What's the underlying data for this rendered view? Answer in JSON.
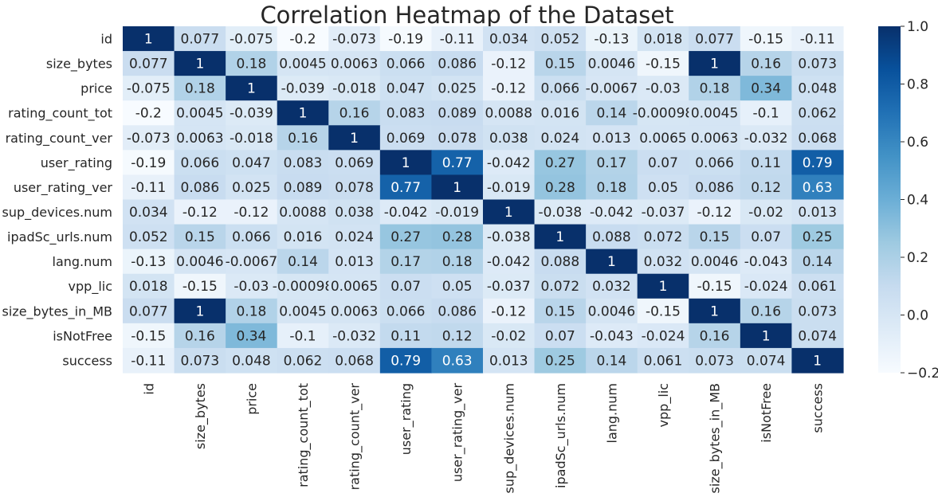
{
  "chart_data": {
    "type": "heatmap",
    "title": "Correlation Heatmap of the Dataset",
    "labels": [
      "id",
      "size_bytes",
      "price",
      "rating_count_tot",
      "rating_count_ver",
      "user_rating",
      "user_rating_ver",
      "sup_devices.num",
      "ipadSc_urls.num",
      "lang.num",
      "vpp_lic",
      "size_bytes_in_MB",
      "isNotFree",
      "success"
    ],
    "matrix": [
      [
        "1",
        "0.077",
        "-0.075",
        "-0.2",
        "-0.073",
        "-0.19",
        "-0.11",
        "0.034",
        "0.052",
        "-0.13",
        "0.018",
        "0.077",
        "-0.15",
        "-0.11"
      ],
      [
        "0.077",
        "1",
        "0.18",
        "0.0045",
        "0.0063",
        "0.066",
        "0.086",
        "-0.12",
        "0.15",
        "0.0046",
        "-0.15",
        "1",
        "0.16",
        "0.073"
      ],
      [
        "-0.075",
        "0.18",
        "1",
        "-0.039",
        "-0.018",
        "0.047",
        "0.025",
        "-0.12",
        "0.066",
        "-0.0067",
        "-0.03",
        "0.18",
        "0.34",
        "0.048"
      ],
      [
        "-0.2",
        "0.0045",
        "-0.039",
        "1",
        "0.16",
        "0.083",
        "0.089",
        "0.0088",
        "0.016",
        "0.14",
        "-0.00098",
        "0.0045",
        "-0.1",
        "0.062"
      ],
      [
        "-0.073",
        "0.0063",
        "-0.018",
        "0.16",
        "1",
        "0.069",
        "0.078",
        "0.038",
        "0.024",
        "0.013",
        "0.0065",
        "0.0063",
        "-0.032",
        "0.068"
      ],
      [
        "-0.19",
        "0.066",
        "0.047",
        "0.083",
        "0.069",
        "1",
        "0.77",
        "-0.042",
        "0.27",
        "0.17",
        "0.07",
        "0.066",
        "0.11",
        "0.79"
      ],
      [
        "-0.11",
        "0.086",
        "0.025",
        "0.089",
        "0.078",
        "0.77",
        "1",
        "-0.019",
        "0.28",
        "0.18",
        "0.05",
        "0.086",
        "0.12",
        "0.63"
      ],
      [
        "0.034",
        "-0.12",
        "-0.12",
        "0.0088",
        "0.038",
        "-0.042",
        "-0.019",
        "1",
        "-0.038",
        "-0.042",
        "-0.037",
        "-0.12",
        "-0.02",
        "0.013"
      ],
      [
        "0.052",
        "0.15",
        "0.066",
        "0.016",
        "0.024",
        "0.27",
        "0.28",
        "-0.038",
        "1",
        "0.088",
        "0.072",
        "0.15",
        "0.07",
        "0.25"
      ],
      [
        "-0.13",
        "0.0046",
        "-0.0067",
        "0.14",
        "0.013",
        "0.17",
        "0.18",
        "-0.042",
        "0.088",
        "1",
        "0.032",
        "0.0046",
        "-0.043",
        "0.14"
      ],
      [
        "0.018",
        "-0.15",
        "-0.03",
        "-0.00098",
        "0.0065",
        "0.07",
        "0.05",
        "-0.037",
        "0.072",
        "0.032",
        "1",
        "-0.15",
        "-0.024",
        "0.061"
      ],
      [
        "0.077",
        "1",
        "0.18",
        "0.0045",
        "0.0063",
        "0.066",
        "0.086",
        "-0.12",
        "0.15",
        "0.0046",
        "-0.15",
        "1",
        "0.16",
        "0.073"
      ],
      [
        "-0.15",
        "0.16",
        "0.34",
        "-0.1",
        "-0.032",
        "0.11",
        "0.12",
        "-0.02",
        "0.07",
        "-0.043",
        "-0.024",
        "0.16",
        "1",
        "0.074"
      ],
      [
        "-0.11",
        "0.073",
        "0.048",
        "0.062",
        "0.068",
        "0.79",
        "0.63",
        "0.013",
        "0.25",
        "0.14",
        "0.061",
        "0.073",
        "0.074",
        "1"
      ]
    ],
    "colorbar": {
      "range": [
        -0.2,
        1.0
      ],
      "ticks": [
        "1.0",
        "0.8",
        "0.6",
        "0.4",
        "0.2",
        "0.0",
        "-0.2"
      ],
      "colormap": "Blues",
      "stops": [
        "#f7fbff",
        "#deebf7",
        "#c6dbef",
        "#9ecae1",
        "#6baed6",
        "#4292c6",
        "#2171b5",
        "#08519c",
        "#08306b"
      ]
    },
    "grid": false,
    "legend": "colorbar-right"
  }
}
